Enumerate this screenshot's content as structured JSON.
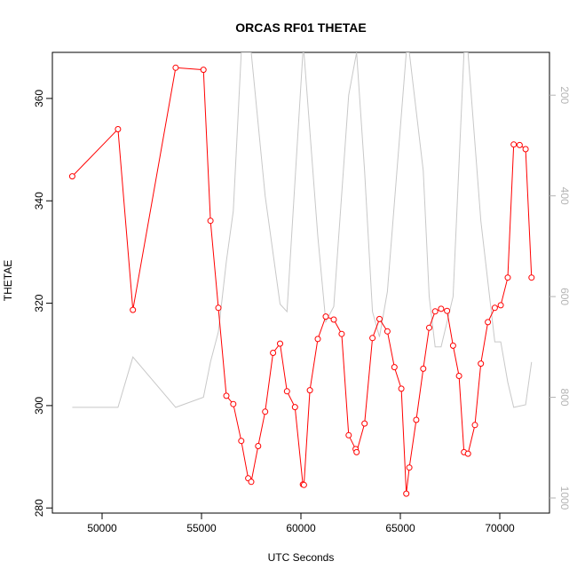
{
  "chart_data": {
    "type": "line",
    "title": "ORCAS RF01 THETAE",
    "xlabel": "UTC Seconds",
    "ylabel": "THETAE",
    "xlim": [
      47500,
      72500
    ],
    "ylim": [
      279,
      369
    ],
    "x_ticks": [
      50000,
      55000,
      60000,
      65000,
      70000
    ],
    "y_ticks": [
      280,
      300,
      320,
      340,
      360
    ],
    "y2_reversed": true,
    "y2_lim": [
      1030,
      115
    ],
    "y2_ticks": [
      200,
      400,
      600,
      800,
      1000
    ],
    "grid": false,
    "series": [
      {
        "color": "#ff0000",
        "style": "line+points",
        "points": [
          [
            48500,
            344.8
          ],
          [
            50800,
            354.0
          ],
          [
            51550,
            318.7
          ],
          [
            53700,
            366.0
          ],
          [
            55100,
            365.6
          ],
          [
            55450,
            336.1
          ],
          [
            55850,
            319.1
          ],
          [
            56250,
            301.9
          ],
          [
            56600,
            300.3
          ],
          [
            57000,
            293.1
          ],
          [
            57350,
            285.8
          ],
          [
            57500,
            285.1
          ],
          [
            57850,
            292.1
          ],
          [
            58200,
            298.8
          ],
          [
            58600,
            310.3
          ],
          [
            58950,
            312.1
          ],
          [
            59300,
            302.8
          ],
          [
            59700,
            299.7
          ],
          [
            60100,
            284.6
          ],
          [
            60150,
            284.5
          ],
          [
            60450,
            303.0
          ],
          [
            60850,
            313.0
          ],
          [
            61250,
            317.4
          ],
          [
            61650,
            316.8
          ],
          [
            62050,
            314.0
          ],
          [
            62400,
            294.2
          ],
          [
            62750,
            291.5
          ],
          [
            62800,
            290.9
          ],
          [
            63200,
            296.5
          ],
          [
            63600,
            313.2
          ],
          [
            63950,
            316.9
          ],
          [
            64350,
            314.5
          ],
          [
            64700,
            307.5
          ],
          [
            65050,
            303.3
          ],
          [
            65300,
            282.8
          ],
          [
            65450,
            287.9
          ],
          [
            65800,
            297.2
          ],
          [
            66150,
            307.2
          ],
          [
            66450,
            315.2
          ],
          [
            66750,
            318.4
          ],
          [
            67050,
            318.9
          ],
          [
            67350,
            318.5
          ],
          [
            67650,
            311.7
          ],
          [
            67950,
            305.8
          ],
          [
            68200,
            290.9
          ],
          [
            68400,
            290.6
          ],
          [
            68750,
            296.2
          ],
          [
            69050,
            308.2
          ],
          [
            69400,
            316.3
          ],
          [
            69750,
            319.1
          ],
          [
            70050,
            319.6
          ],
          [
            70400,
            325.0
          ],
          [
            70700,
            351.0
          ],
          [
            71000,
            350.9
          ],
          [
            71300,
            350.1
          ],
          [
            71600,
            325.0
          ]
        ]
      },
      {
        "color": "#c8c8c8",
        "style": "line",
        "axis": "right",
        "points": [
          [
            48500,
            820
          ],
          [
            50800,
            820
          ],
          [
            51550,
            720
          ],
          [
            53700,
            820
          ],
          [
            55100,
            800
          ],
          [
            55450,
            730
          ],
          [
            55850,
            670
          ],
          [
            56250,
            530
          ],
          [
            56600,
            430
          ],
          [
            57000,
            115
          ],
          [
            57500,
            115
          ],
          [
            58200,
            400
          ],
          [
            58950,
            615
          ],
          [
            59300,
            630
          ],
          [
            60100,
            115
          ],
          [
            60150,
            115
          ],
          [
            60850,
            480
          ],
          [
            61250,
            650
          ],
          [
            61650,
            620
          ],
          [
            62400,
            200
          ],
          [
            62800,
            115
          ],
          [
            63200,
            350
          ],
          [
            63600,
            630
          ],
          [
            63950,
            680
          ],
          [
            64350,
            590
          ],
          [
            65300,
            115
          ],
          [
            65450,
            115
          ],
          [
            66150,
            350
          ],
          [
            66450,
            600
          ],
          [
            66750,
            700
          ],
          [
            67050,
            700
          ],
          [
            67650,
            600
          ],
          [
            68200,
            115
          ],
          [
            68400,
            115
          ],
          [
            69050,
            450
          ],
          [
            69750,
            690
          ],
          [
            70050,
            690
          ],
          [
            70400,
            770
          ],
          [
            70700,
            820
          ],
          [
            71300,
            815
          ],
          [
            71600,
            730
          ]
        ]
      }
    ]
  }
}
